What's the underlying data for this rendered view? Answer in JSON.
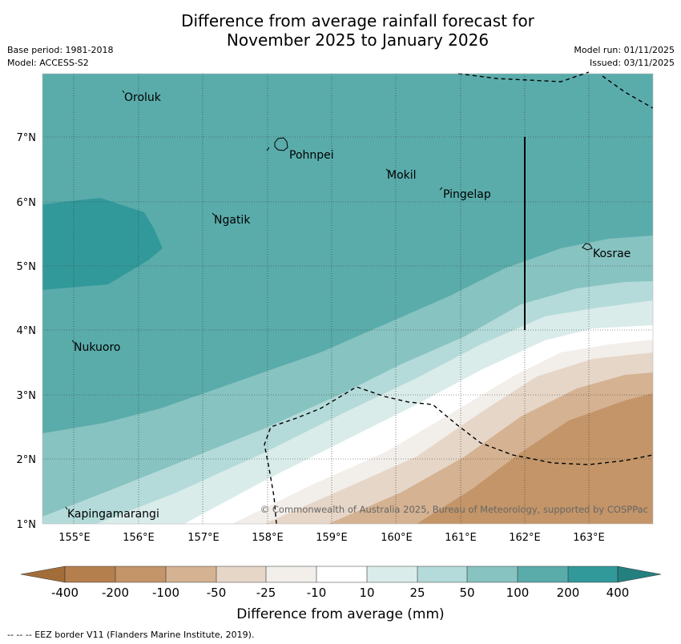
{
  "title_line1": "Difference from average rainfall forecast for",
  "title_line2": "November 2025 to January 2026",
  "meta_left": [
    "Base period: 1981-2018",
    "Model: ACCESS-S2"
  ],
  "meta_right": [
    "Model run: 01/11/2025",
    "Issued: 03/11/2025"
  ],
  "lat_labels": [
    "7°N",
    "6°N",
    "5°N",
    "4°N",
    "3°N",
    "2°N",
    "1°N"
  ],
  "lon_labels": [
    "155°E",
    "156°E",
    "157°E",
    "158°E",
    "159°E",
    "160°E",
    "161°E",
    "162°E",
    "163°E"
  ],
  "places": [
    "Oroluk",
    "Pohnpei",
    "Mokil",
    "Pingelap",
    "Ngatik",
    "Kosrae",
    "Nukuoro",
    "Kapingamarangi"
  ],
  "copyright": "© Commonwealth of Australia 2025, Bureau of Meteorology, supported by COSPPac",
  "colorbar": {
    "ticks": [
      "-400",
      "-200",
      "-100",
      "-50",
      "-25",
      "-10",
      "10",
      "25",
      "50",
      "100",
      "200",
      "400"
    ],
    "colors": [
      "#a36d3a",
      "#b57f4d",
      "#c39568",
      "#d4b292",
      "#e6d6c8",
      "#f2eeea",
      "#ffffff",
      "#d9ecea",
      "#b4dbd9",
      "#87c3c1",
      "#5aacab",
      "#32999a",
      "#24807f"
    ],
    "label": "Difference from average (mm)"
  },
  "footnote": "-- -- -- EEZ border V11 (Flanders Marine Institute, 2019).",
  "colors": {
    "lighttan": "#e6d6c8",
    "tan": "#d4b292",
    "brown": "#c39568",
    "teal1": "#d9ecea",
    "teal2": "#b4dbd9",
    "teal3": "#87c3c1",
    "teal4": "#5aacab",
    "teal5": "#32999a"
  }
}
